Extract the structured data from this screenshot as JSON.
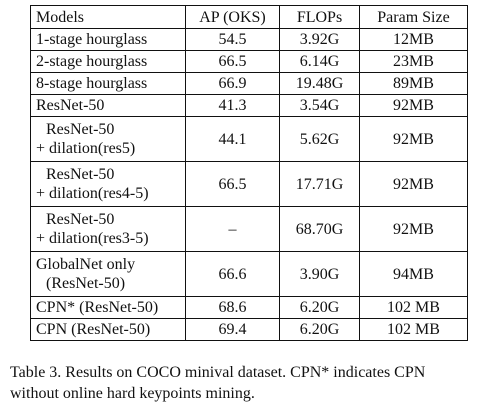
{
  "table": {
    "headers": [
      "Models",
      "AP (OKS)",
      "FLOPs",
      "Param Size"
    ],
    "rows": [
      {
        "model_lines": [
          "1-stage hourglass"
        ],
        "ap": "54.5",
        "flops": "3.92G",
        "param": "12MB"
      },
      {
        "model_lines": [
          "2-stage hourglass"
        ],
        "ap": "66.5",
        "flops": "6.14G",
        "param": "23MB"
      },
      {
        "model_lines": [
          "8-stage hourglass"
        ],
        "ap": "66.9",
        "flops": "19.48G",
        "param": "89MB"
      },
      {
        "model_lines": [
          "ResNet-50"
        ],
        "ap": "41.3",
        "flops": "3.54G",
        "param": "92MB"
      },
      {
        "model_lines": [
          "ResNet-50",
          "+ dilation(res5)"
        ],
        "ap": "44.1",
        "flops": "5.62G",
        "param": "92MB"
      },
      {
        "model_lines": [
          "ResNet-50",
          "+ dilation(res4-5)"
        ],
        "ap": "66.5",
        "flops": "17.71G",
        "param": "92MB"
      },
      {
        "model_lines": [
          "ResNet-50",
          "+ dilation(res3-5)"
        ],
        "ap": "–",
        "flops": "68.70G",
        "param": "92MB"
      },
      {
        "model_lines": [
          "GlobalNet only",
          "(ResNet-50)"
        ],
        "ap": "66.6",
        "flops": "3.90G",
        "param": "94MB"
      },
      {
        "model_lines": [
          "CPN* (ResNet-50)"
        ],
        "ap": "68.6",
        "flops": "6.20G",
        "param": "102 MB"
      },
      {
        "model_lines": [
          "CPN (ResNet-50)"
        ],
        "ap": "69.4",
        "flops": "6.20G",
        "param": "102 MB"
      }
    ]
  },
  "caption": {
    "line1": "Table 3. Results on COCO minival dataset. CPN* indicates CPN",
    "line2": "without online hard keypoints mining."
  }
}
